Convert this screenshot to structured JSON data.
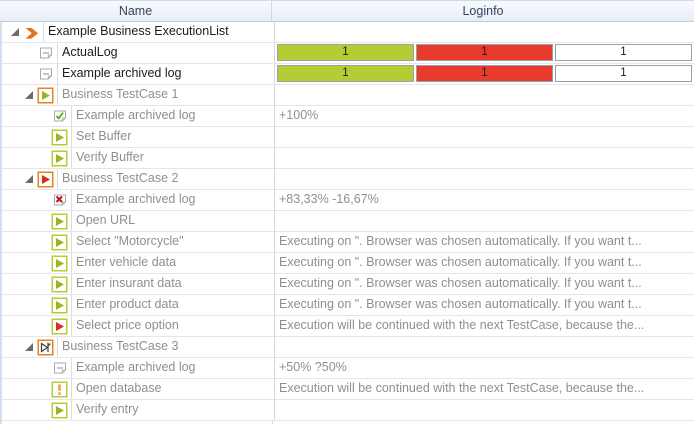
{
  "header": {
    "name_label": "Name",
    "loginfo_label": "Loginfo"
  },
  "colors": {
    "passed": "#b6cc35",
    "failed": "#e83a2d",
    "unexecuted": "#ffffff",
    "accent_orange": "#e8701a",
    "testcase_border_orange": "#e8821e",
    "step_border_green": "#b5cc34",
    "play_green": "#97b823",
    "play_red": "#d92b1e",
    "warning_orange": "#f0a23c",
    "grey_text": "#8f8f8f",
    "black_text": "#1c1c1c"
  },
  "rows": [
    {
      "level": 0,
      "expander": true,
      "icon": "executionlist-icon",
      "label": "Example Business ExecutionList",
      "emphasis": "black",
      "log": {
        "type": "none"
      }
    },
    {
      "level": 1,
      "expander": false,
      "icon": "log-icon",
      "label": "ActualLog",
      "emphasis": "black",
      "log": {
        "type": "cells",
        "values": [
          "1",
          "1",
          "1"
        ],
        "statuses": [
          "passed",
          "failed",
          "unexecuted"
        ]
      }
    },
    {
      "level": 1,
      "expander": false,
      "icon": "log-icon",
      "label": "Example archived log",
      "emphasis": "black",
      "log": {
        "type": "cells",
        "values": [
          "1",
          "1",
          "1"
        ],
        "statuses": [
          "passed",
          "failed",
          "unexecuted"
        ]
      }
    },
    {
      "level": 1,
      "expander": true,
      "icon": "testcase-passed-icon",
      "label": "Business TestCase 1",
      "emphasis": "grey",
      "log": {
        "type": "none"
      }
    },
    {
      "level": 2,
      "expander": false,
      "icon": "log-passed-icon",
      "label": "Example archived log",
      "emphasis": "grey",
      "log": {
        "type": "text",
        "text": "+100%"
      }
    },
    {
      "level": 2,
      "expander": false,
      "icon": "step-passed-icon",
      "label": "Set Buffer",
      "emphasis": "grey",
      "log": {
        "type": "none"
      }
    },
    {
      "level": 2,
      "expander": false,
      "icon": "step-passed-icon",
      "label": "Verify Buffer",
      "emphasis": "grey",
      "log": {
        "type": "none"
      }
    },
    {
      "level": 1,
      "expander": true,
      "icon": "testcase-failed-icon",
      "label": "Business TestCase 2",
      "emphasis": "grey",
      "log": {
        "type": "none"
      }
    },
    {
      "level": 2,
      "expander": false,
      "icon": "log-failed-icon",
      "label": "Example archived log",
      "emphasis": "grey",
      "log": {
        "type": "text",
        "text": "+83,33% -16,67%"
      }
    },
    {
      "level": 2,
      "expander": false,
      "icon": "step-passed-icon",
      "label": "Open URL",
      "emphasis": "grey",
      "log": {
        "type": "none"
      }
    },
    {
      "level": 2,
      "expander": false,
      "icon": "step-passed-icon",
      "label": "Select \"Motorcycle\"",
      "emphasis": "grey",
      "log": {
        "type": "text",
        "text": "Executing on \". Browser was chosen automatically. If you want t..."
      }
    },
    {
      "level": 2,
      "expander": false,
      "icon": "step-passed-icon",
      "label": "Enter vehicle data",
      "emphasis": "grey",
      "log": {
        "type": "text",
        "text": "Executing on \". Browser was chosen automatically. If you want t..."
      }
    },
    {
      "level": 2,
      "expander": false,
      "icon": "step-passed-icon",
      "label": "Enter insurant data",
      "emphasis": "grey",
      "log": {
        "type": "text",
        "text": "Executing on \". Browser was chosen automatically. If you want t..."
      }
    },
    {
      "level": 2,
      "expander": false,
      "icon": "step-passed-icon",
      "label": "Enter product data",
      "emphasis": "grey",
      "log": {
        "type": "text",
        "text": "Executing on \". Browser was chosen automatically. If you want t..."
      }
    },
    {
      "level": 2,
      "expander": false,
      "icon": "step-failed-icon",
      "label": "Select price option",
      "emphasis": "grey",
      "log": {
        "type": "text",
        "text": "Execution will be continued with the next TestCase, because the..."
      }
    },
    {
      "level": 1,
      "expander": true,
      "icon": "testcase-aborted-icon",
      "label": "Business TestCase 3",
      "emphasis": "grey",
      "log": {
        "type": "none"
      }
    },
    {
      "level": 2,
      "expander": false,
      "icon": "log-icon",
      "label": "Example archived log",
      "emphasis": "grey",
      "log": {
        "type": "text",
        "text": "+50% ?50%"
      }
    },
    {
      "level": 2,
      "expander": false,
      "icon": "step-warning-icon",
      "label": "Open database",
      "emphasis": "grey",
      "log": {
        "type": "text",
        "text": "Execution will be continued with the next TestCase, because the..."
      }
    },
    {
      "level": 2,
      "expander": false,
      "icon": "step-passed-icon",
      "label": "Verify entry",
      "emphasis": "grey",
      "log": {
        "type": "none"
      }
    }
  ]
}
